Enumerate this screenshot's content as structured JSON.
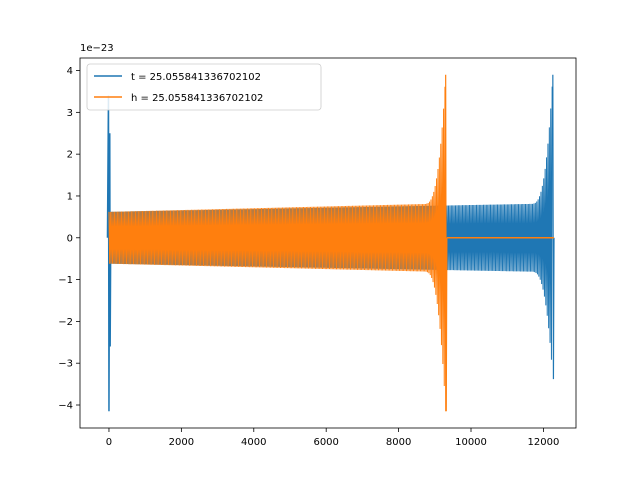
{
  "chart_data": {
    "type": "line",
    "title": "",
    "xlabel": "",
    "ylabel": "",
    "offset_text": "1e−23",
    "xlim": [
      -800,
      12900
    ],
    "ylim": [
      -4.55,
      4.3
    ],
    "xticks": [
      0,
      2000,
      4000,
      6000,
      8000,
      10000,
      12000
    ],
    "xtick_labels": [
      "0",
      "2000",
      "4000",
      "6000",
      "8000",
      "10000",
      "12000"
    ],
    "yticks": [
      -4,
      -3,
      -2,
      -1,
      0,
      1,
      2,
      3,
      4
    ],
    "ytick_labels": [
      "−4",
      "−3",
      "−2",
      "−1",
      "0",
      "1",
      "2",
      "3",
      "4"
    ],
    "grid": false,
    "legend_position": "top-left",
    "series": [
      {
        "name": "t = 25.055841336702102",
        "color": "#1f77b4",
        "style": "chirp_with_burst",
        "x_range": [
          0,
          12290
        ],
        "burst_x": 0,
        "burst_envelope": [
          -4.15,
          3.4
        ],
        "dense_start_x": 9300,
        "amplitude_start": 0.82,
        "peak_x": 12260,
        "peak_max": 3.9,
        "peak_min": -3.38
      },
      {
        "name": "h = 25.055841336702102",
        "color": "#ff7f0e",
        "style": "chirp_then_flat",
        "x_range": [
          0,
          12290
        ],
        "start_x": 0,
        "amplitude_start": 0.66,
        "peak_x": 9300,
        "peak_max": 3.9,
        "peak_min": -4.15,
        "flat_value": 0
      }
    ]
  }
}
